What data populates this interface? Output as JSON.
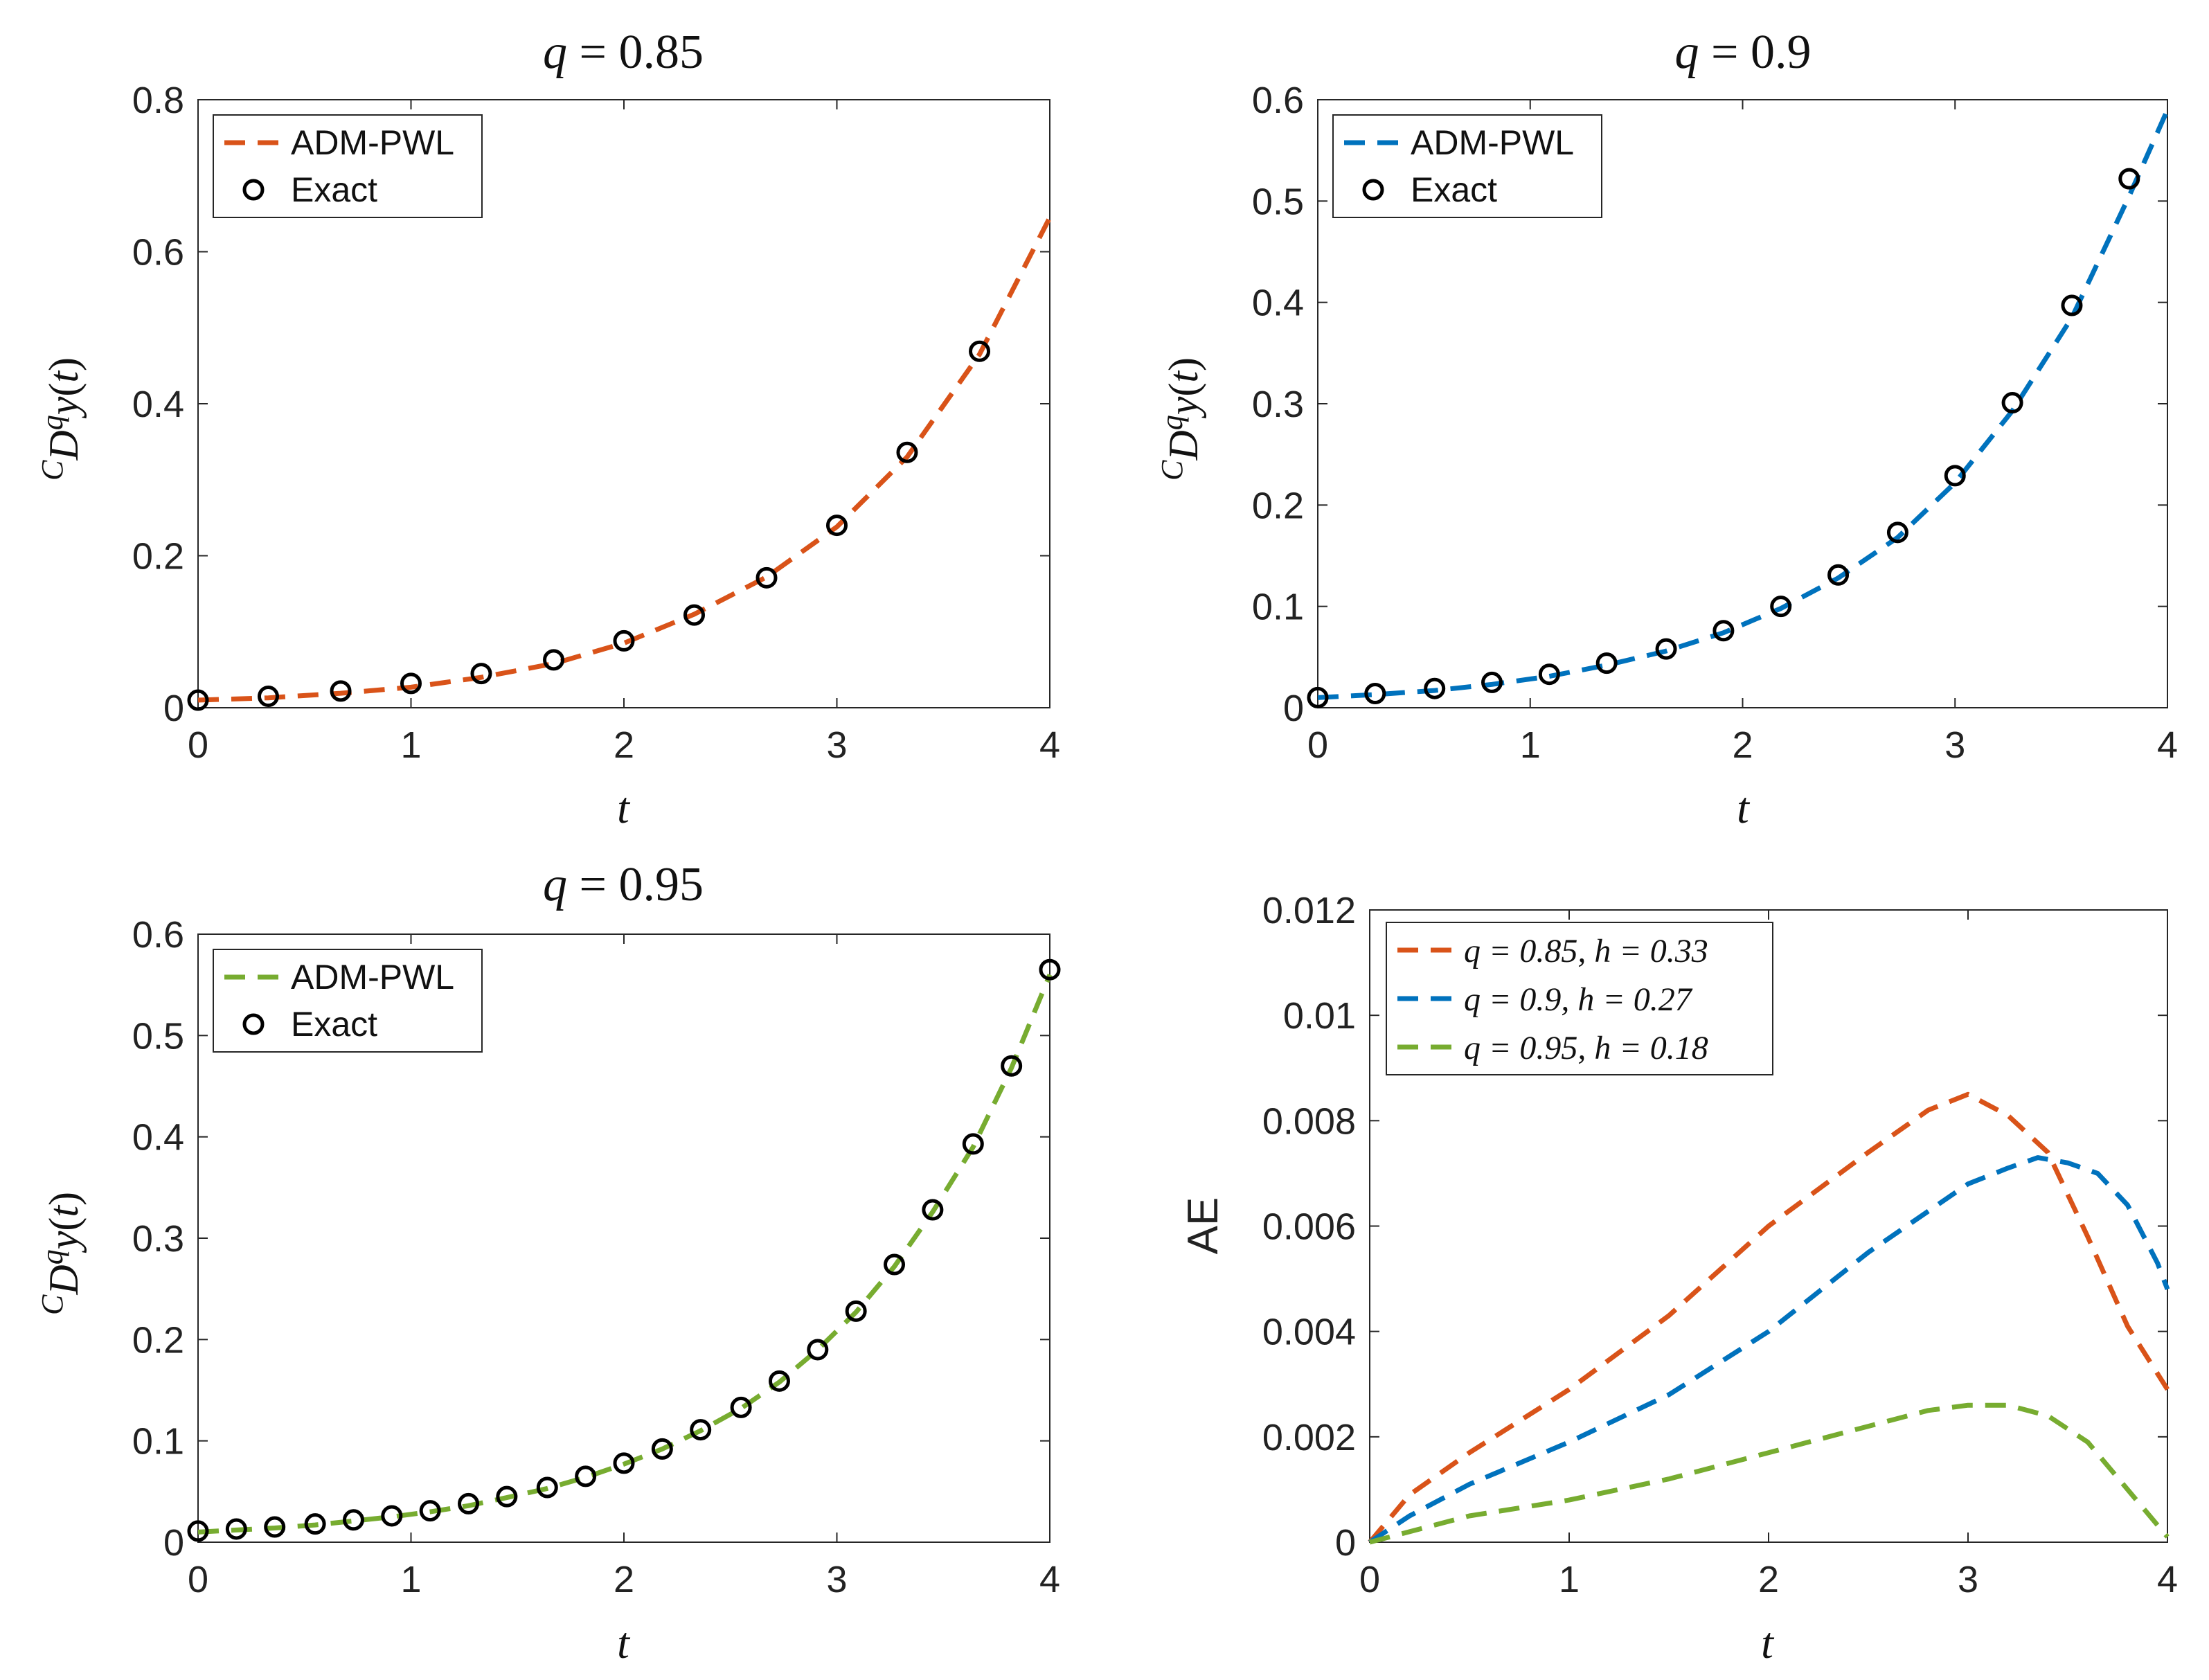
{
  "chart_data": [
    {
      "id": "p1",
      "type": "line",
      "title": "q = 0.85",
      "xlabel": "t",
      "ylabel": "^C D^q y(t)",
      "xlim": [
        0,
        4
      ],
      "ylim": [
        0,
        0.8
      ],
      "xticks": [
        0,
        1,
        2,
        3,
        4
      ],
      "yticks": [
        0,
        0.2,
        0.4,
        0.6,
        0.8
      ],
      "xtick_labels": [
        "0",
        "1",
        "2",
        "3",
        "4"
      ],
      "ytick_labels": [
        "0",
        "0.2",
        "0.4",
        "0.6",
        "0.8"
      ],
      "legend_position": "top-left",
      "series": [
        {
          "name": "ADM-PWL",
          "style": "dashed",
          "color": "#D95319",
          "x": [
            0,
            0.33,
            0.67,
            1.0,
            1.33,
            1.67,
            2.0,
            2.33,
            2.67,
            3.0,
            3.33,
            3.67,
            4.0
          ],
          "y": [
            0.01,
            0.013,
            0.019,
            0.027,
            0.04,
            0.058,
            0.085,
            0.123,
            0.172,
            0.238,
            0.33,
            0.465,
            0.645
          ]
        },
        {
          "name": "Exact",
          "style": "markers",
          "color": "#000000",
          "x": [
            0,
            0.33,
            0.67,
            1.0,
            1.33,
            1.67,
            2.0,
            2.33,
            2.67,
            3.0,
            3.33,
            3.67
          ],
          "y": [
            0.01,
            0.015,
            0.022,
            0.032,
            0.045,
            0.063,
            0.088,
            0.122,
            0.171,
            0.24,
            0.336,
            0.469
          ]
        }
      ]
    },
    {
      "id": "p2",
      "type": "line",
      "title": "q = 0.9",
      "xlabel": "t",
      "ylabel": "^C D^q y(t)",
      "xlim": [
        0,
        4
      ],
      "ylim": [
        0,
        0.6
      ],
      "xticks": [
        0,
        1,
        2,
        3,
        4
      ],
      "yticks": [
        0,
        0.1,
        0.2,
        0.3,
        0.4,
        0.5,
        0.6
      ],
      "xtick_labels": [
        "0",
        "1",
        "2",
        "3",
        "4"
      ],
      "ytick_labels": [
        "0",
        "0.1",
        "0.2",
        "0.3",
        "0.4",
        "0.5",
        "0.6"
      ],
      "legend_position": "top-left",
      "series": [
        {
          "name": "ADM-PWL",
          "style": "dashed",
          "color": "#0072BD",
          "x": [
            0,
            0.27,
            0.55,
            0.82,
            1.09,
            1.36,
            1.64,
            1.91,
            2.18,
            2.45,
            2.73,
            3.0,
            3.27,
            3.55,
            3.82,
            4.0
          ],
          "y": [
            0.01,
            0.013,
            0.017,
            0.023,
            0.031,
            0.042,
            0.056,
            0.074,
            0.098,
            0.128,
            0.168,
            0.222,
            0.293,
            0.385,
            0.505,
            0.59
          ]
        },
        {
          "name": "Exact",
          "style": "markers",
          "color": "#000000",
          "x": [
            0,
            0.27,
            0.55,
            0.82,
            1.09,
            1.36,
            1.64,
            1.91,
            2.18,
            2.45,
            2.73,
            3.0,
            3.27,
            3.55,
            3.82
          ],
          "y": [
            0.01,
            0.014,
            0.019,
            0.025,
            0.033,
            0.044,
            0.058,
            0.076,
            0.1,
            0.131,
            0.173,
            0.229,
            0.301,
            0.397,
            0.522
          ]
        }
      ]
    },
    {
      "id": "p3",
      "type": "line",
      "title": "q = 0.95",
      "xlabel": "t",
      "ylabel": "^C D^q y(t)",
      "xlim": [
        0,
        4
      ],
      "ylim": [
        0,
        0.6
      ],
      "xticks": [
        0,
        1,
        2,
        3,
        4
      ],
      "yticks": [
        0,
        0.1,
        0.2,
        0.3,
        0.4,
        0.5,
        0.6
      ],
      "xtick_labels": [
        "0",
        "1",
        "2",
        "3",
        "4"
      ],
      "ytick_labels": [
        "0",
        "0.1",
        "0.2",
        "0.3",
        "0.4",
        "0.5",
        "0.6"
      ],
      "legend_position": "top-left",
      "series": [
        {
          "name": "ADM-PWL",
          "style": "dashed",
          "color": "#77AC30",
          "x": [
            0,
            0.18,
            0.36,
            0.55,
            0.73,
            0.91,
            1.09,
            1.27,
            1.45,
            1.64,
            1.82,
            2.0,
            2.18,
            2.36,
            2.55,
            2.73,
            2.91,
            3.09,
            3.27,
            3.45,
            3.64,
            3.82,
            4.0
          ],
          "y": [
            0.01,
            0.012,
            0.014,
            0.017,
            0.021,
            0.025,
            0.03,
            0.036,
            0.044,
            0.053,
            0.064,
            0.077,
            0.092,
            0.11,
            0.132,
            0.158,
            0.19,
            0.227,
            0.272,
            0.326,
            0.39,
            0.468,
            0.56
          ]
        },
        {
          "name": "Exact",
          "style": "markers",
          "color": "#000000",
          "x": [
            0,
            0.18,
            0.36,
            0.55,
            0.73,
            0.91,
            1.09,
            1.27,
            1.45,
            1.64,
            1.82,
            2.0,
            2.18,
            2.36,
            2.55,
            2.73,
            2.91,
            3.09,
            3.27,
            3.45,
            3.64,
            3.82,
            4.0
          ],
          "y": [
            0.011,
            0.013,
            0.015,
            0.018,
            0.022,
            0.026,
            0.031,
            0.038,
            0.045,
            0.054,
            0.065,
            0.078,
            0.092,
            0.111,
            0.133,
            0.159,
            0.19,
            0.228,
            0.274,
            0.328,
            0.393,
            0.47,
            0.565
          ]
        }
      ]
    },
    {
      "id": "p4",
      "type": "line",
      "title": "",
      "xlabel": "t",
      "ylabel": "AE",
      "xlim": [
        0,
        4
      ],
      "ylim": [
        0,
        0.012
      ],
      "xticks": [
        0,
        1,
        2,
        3,
        4
      ],
      "yticks": [
        0,
        0.002,
        0.004,
        0.006,
        0.008,
        0.01,
        0.012
      ],
      "xtick_labels": [
        "0",
        "1",
        "2",
        "3",
        "4"
      ],
      "ytick_labels": [
        "0",
        "0.002",
        "0.004",
        "0.006",
        "0.008",
        "0.01",
        "0.012"
      ],
      "legend_position": "top-left",
      "series": [
        {
          "name": "q = 0.85, h = 0.33",
          "style": "dashed",
          "color": "#D95319",
          "x": [
            0,
            0.2,
            0.5,
            1.0,
            1.5,
            2.0,
            2.5,
            2.8,
            3.0,
            3.2,
            3.4,
            3.6,
            3.8,
            4.0
          ],
          "y": [
            0,
            0.0009,
            0.0017,
            0.0029,
            0.0043,
            0.006,
            0.0074,
            0.0082,
            0.0085,
            0.0081,
            0.0074,
            0.0058,
            0.0041,
            0.0029
          ]
        },
        {
          "name": "q = 0.9, h = 0.27",
          "style": "dashed",
          "color": "#0072BD",
          "x": [
            0,
            0.2,
            0.5,
            1.0,
            1.5,
            2.0,
            2.5,
            3.0,
            3.2,
            3.35,
            3.5,
            3.65,
            3.8,
            3.95,
            4.0
          ],
          "y": [
            0,
            0.0005,
            0.0011,
            0.0019,
            0.0028,
            0.004,
            0.0055,
            0.0068,
            0.0071,
            0.0073,
            0.0072,
            0.007,
            0.0064,
            0.0053,
            0.0048
          ]
        },
        {
          "name": "q = 0.95, h = 0.18",
          "style": "dashed",
          "color": "#77AC30",
          "x": [
            0,
            0.5,
            1.0,
            1.5,
            2.0,
            2.5,
            2.8,
            3.0,
            3.2,
            3.4,
            3.6,
            3.8,
            4.0
          ],
          "y": [
            0,
            0.0005,
            0.0008,
            0.0012,
            0.0017,
            0.0022,
            0.0025,
            0.0026,
            0.0026,
            0.0024,
            0.0019,
            0.001,
            0.0001
          ]
        }
      ]
    }
  ]
}
